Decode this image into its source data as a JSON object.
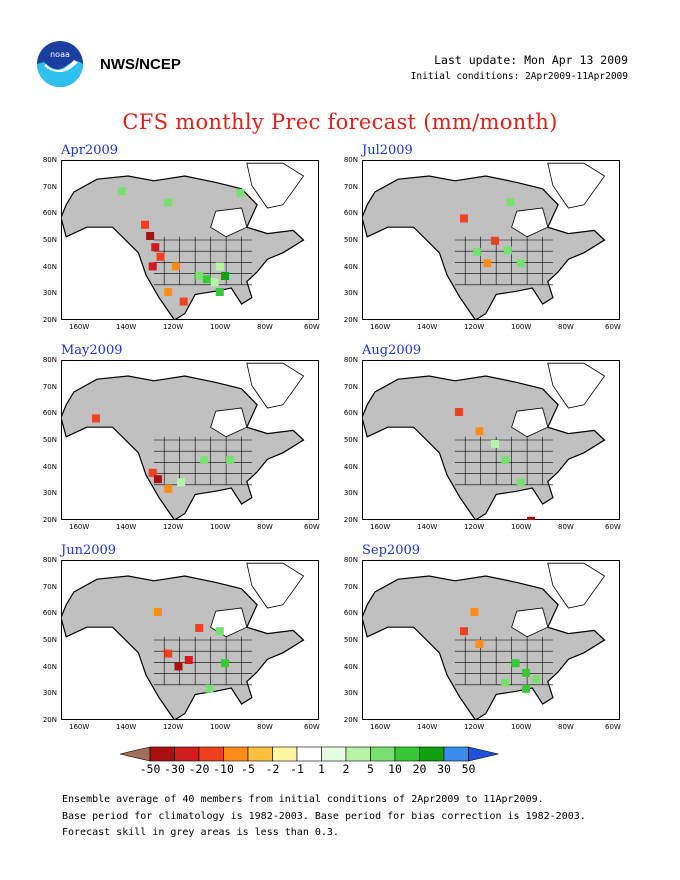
{
  "header": {
    "logo": "noaa-logo",
    "org": "NWS/NCEP",
    "last_update": "Last update: Mon Apr 13 2009",
    "initial_conditions": "Initial conditions: 2Apr2009-11Apr2009"
  },
  "title": "CFS monthly Prec forecast (mm/month)",
  "panels": [
    {
      "month": "Apr2009"
    },
    {
      "month": "Jul2009"
    },
    {
      "month": "May2009"
    },
    {
      "month": "Aug2009"
    },
    {
      "month": "Jun2009"
    },
    {
      "month": "Sep2009"
    }
  ],
  "axes": {
    "lat_ticks": [
      "80N",
      "70N",
      "60N",
      "50N",
      "40N",
      "30N",
      "20N"
    ],
    "lon_ticks": [
      "160W",
      "140W",
      "120W",
      "100W",
      "80W",
      "60W"
    ]
  },
  "legend": {
    "labels": [
      "-50",
      "-30",
      "-20",
      "-10",
      "-5",
      "-2",
      "-1",
      "1",
      "2",
      "5",
      "10",
      "20",
      "30",
      "50"
    ],
    "colors": [
      "#a0705a",
      "#aa1010",
      "#d01c1c",
      "#f04020",
      "#ff8c1a",
      "#ffc040",
      "#fff5a0",
      "#ffffff",
      "#e6fce0",
      "#b8f4a8",
      "#78e070",
      "#38c838",
      "#10a010",
      "#3c8cf0",
      "#1e50dc"
    ]
  },
  "notes": [
    "Ensemble average of 40 members from initial conditions of 2Apr2009 to 11Apr2009.",
    "Base period for climatology is 1982-2003. Base period for bias correction is 1982-2003.",
    "Forecast skill in grey areas is less than 0.3."
  ],
  "colors": {
    "grey_area": "#c0c0c0",
    "title": "#e0201a",
    "month_label": "#1b33d8"
  }
}
